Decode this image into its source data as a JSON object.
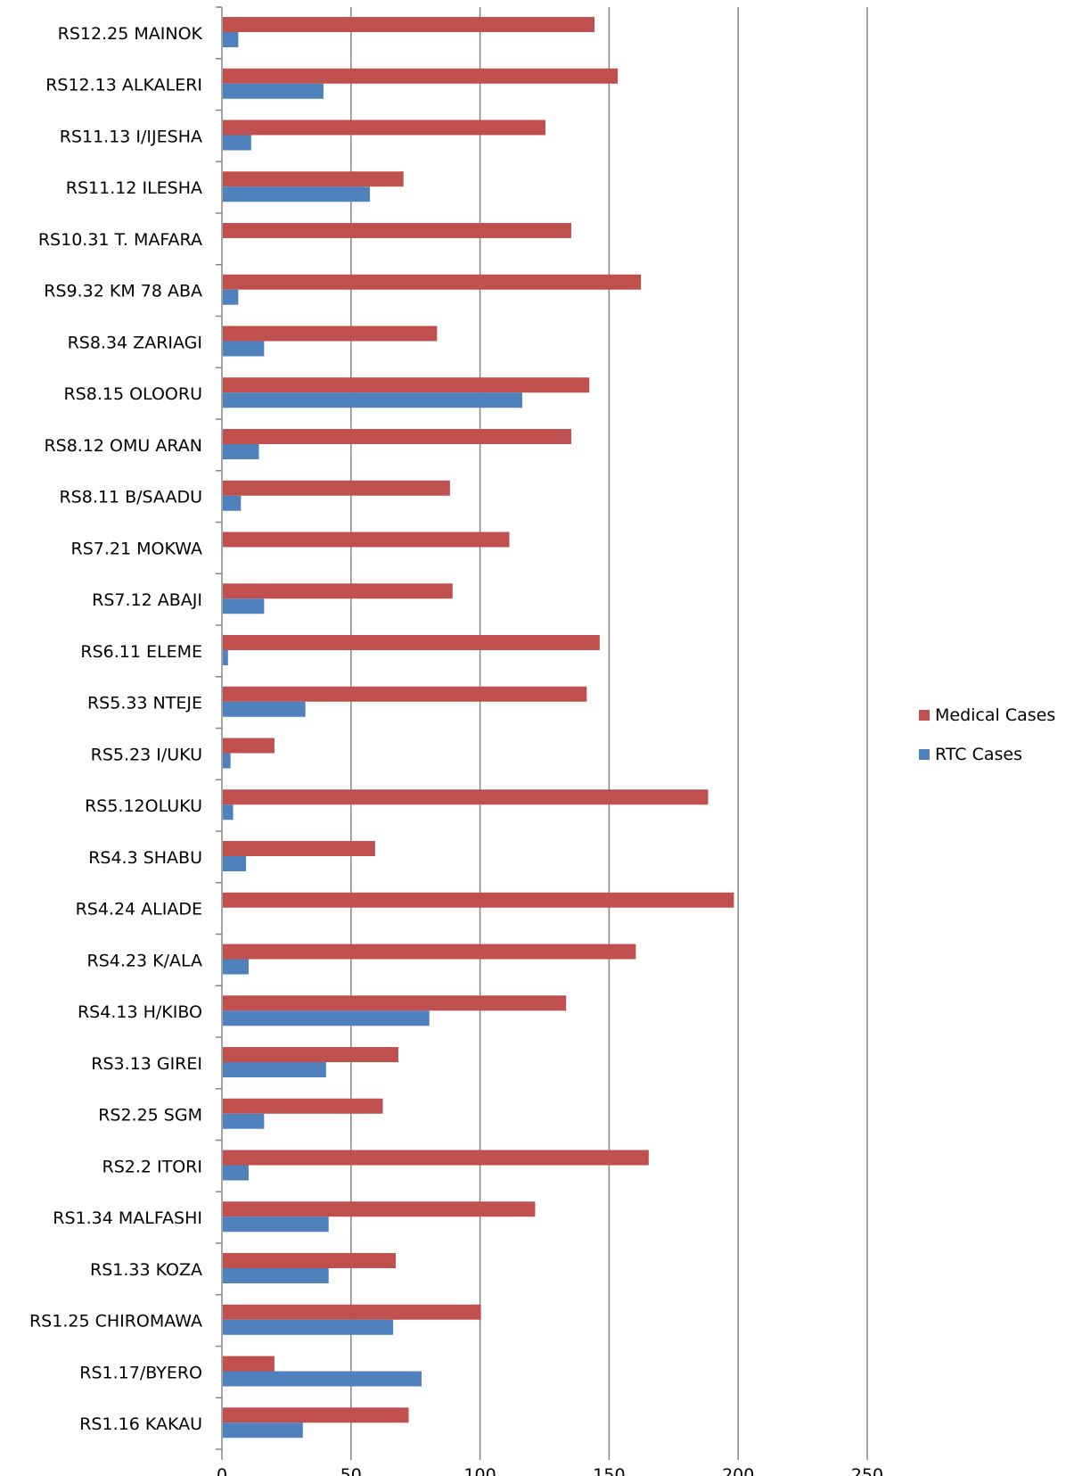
{
  "chart_data": {
    "type": "bar",
    "orientation": "horizontal",
    "categories": [
      "RS12.25 MAINOK",
      "RS12.13 ALKALERI",
      "RS11.13 I/IJESHA",
      "RS11.12 ILESHA",
      "RS10.31 T. MAFARA",
      "RS9.32  KM 78 ABA",
      "RS8.34 ZARIAGI",
      "RS8.15 OLOORU",
      "RS8.12 OMU ARAN",
      "RS8.11 B/SAADU",
      "RS7.21 MOKWA",
      "RS7.12 ABAJI",
      "RS6.11 ELEME",
      "RS5.33 NTEJE",
      "RS5.23 I/UKU",
      "RS5.12OLUKU",
      "RS4.3 SHABU",
      "RS4.24 ALIADE",
      "RS4.23 K/ALA",
      "RS4.13 H/KIBO",
      "RS3.13 GIREI",
      "RS2.25 SGM",
      "RS2.2 ITORI",
      "RS1.34 MALFASHI",
      "RS1.33 KOZA",
      "RS1.25 CHIROMAWA",
      "RS1.17/BYERO",
      "RS1.16 KAKAU"
    ],
    "series": [
      {
        "name": "Medical Cases",
        "color": "#c0504d",
        "values": [
          144,
          153,
          125,
          70,
          135,
          162,
          83,
          142,
          135,
          88,
          111,
          89,
          146,
          141,
          20,
          188,
          59,
          198,
          160,
          133,
          68,
          62,
          165,
          121,
          67,
          100,
          20,
          72
        ]
      },
      {
        "name": "RTC Cases",
        "color": "#4f81bd",
        "values": [
          6,
          39,
          11,
          57,
          0,
          6,
          16,
          116,
          14,
          7,
          0,
          16,
          2,
          32,
          3,
          4,
          9,
          0,
          10,
          80,
          40,
          16,
          10,
          41,
          41,
          66,
          77,
          31
        ]
      }
    ],
    "xlim": [
      0,
      250
    ],
    "xticks": [
      "0",
      "50",
      "100",
      "150",
      "200",
      "250"
    ],
    "grid": true,
    "legend_position": "right",
    "title": "",
    "xlabel": "",
    "ylabel": ""
  }
}
